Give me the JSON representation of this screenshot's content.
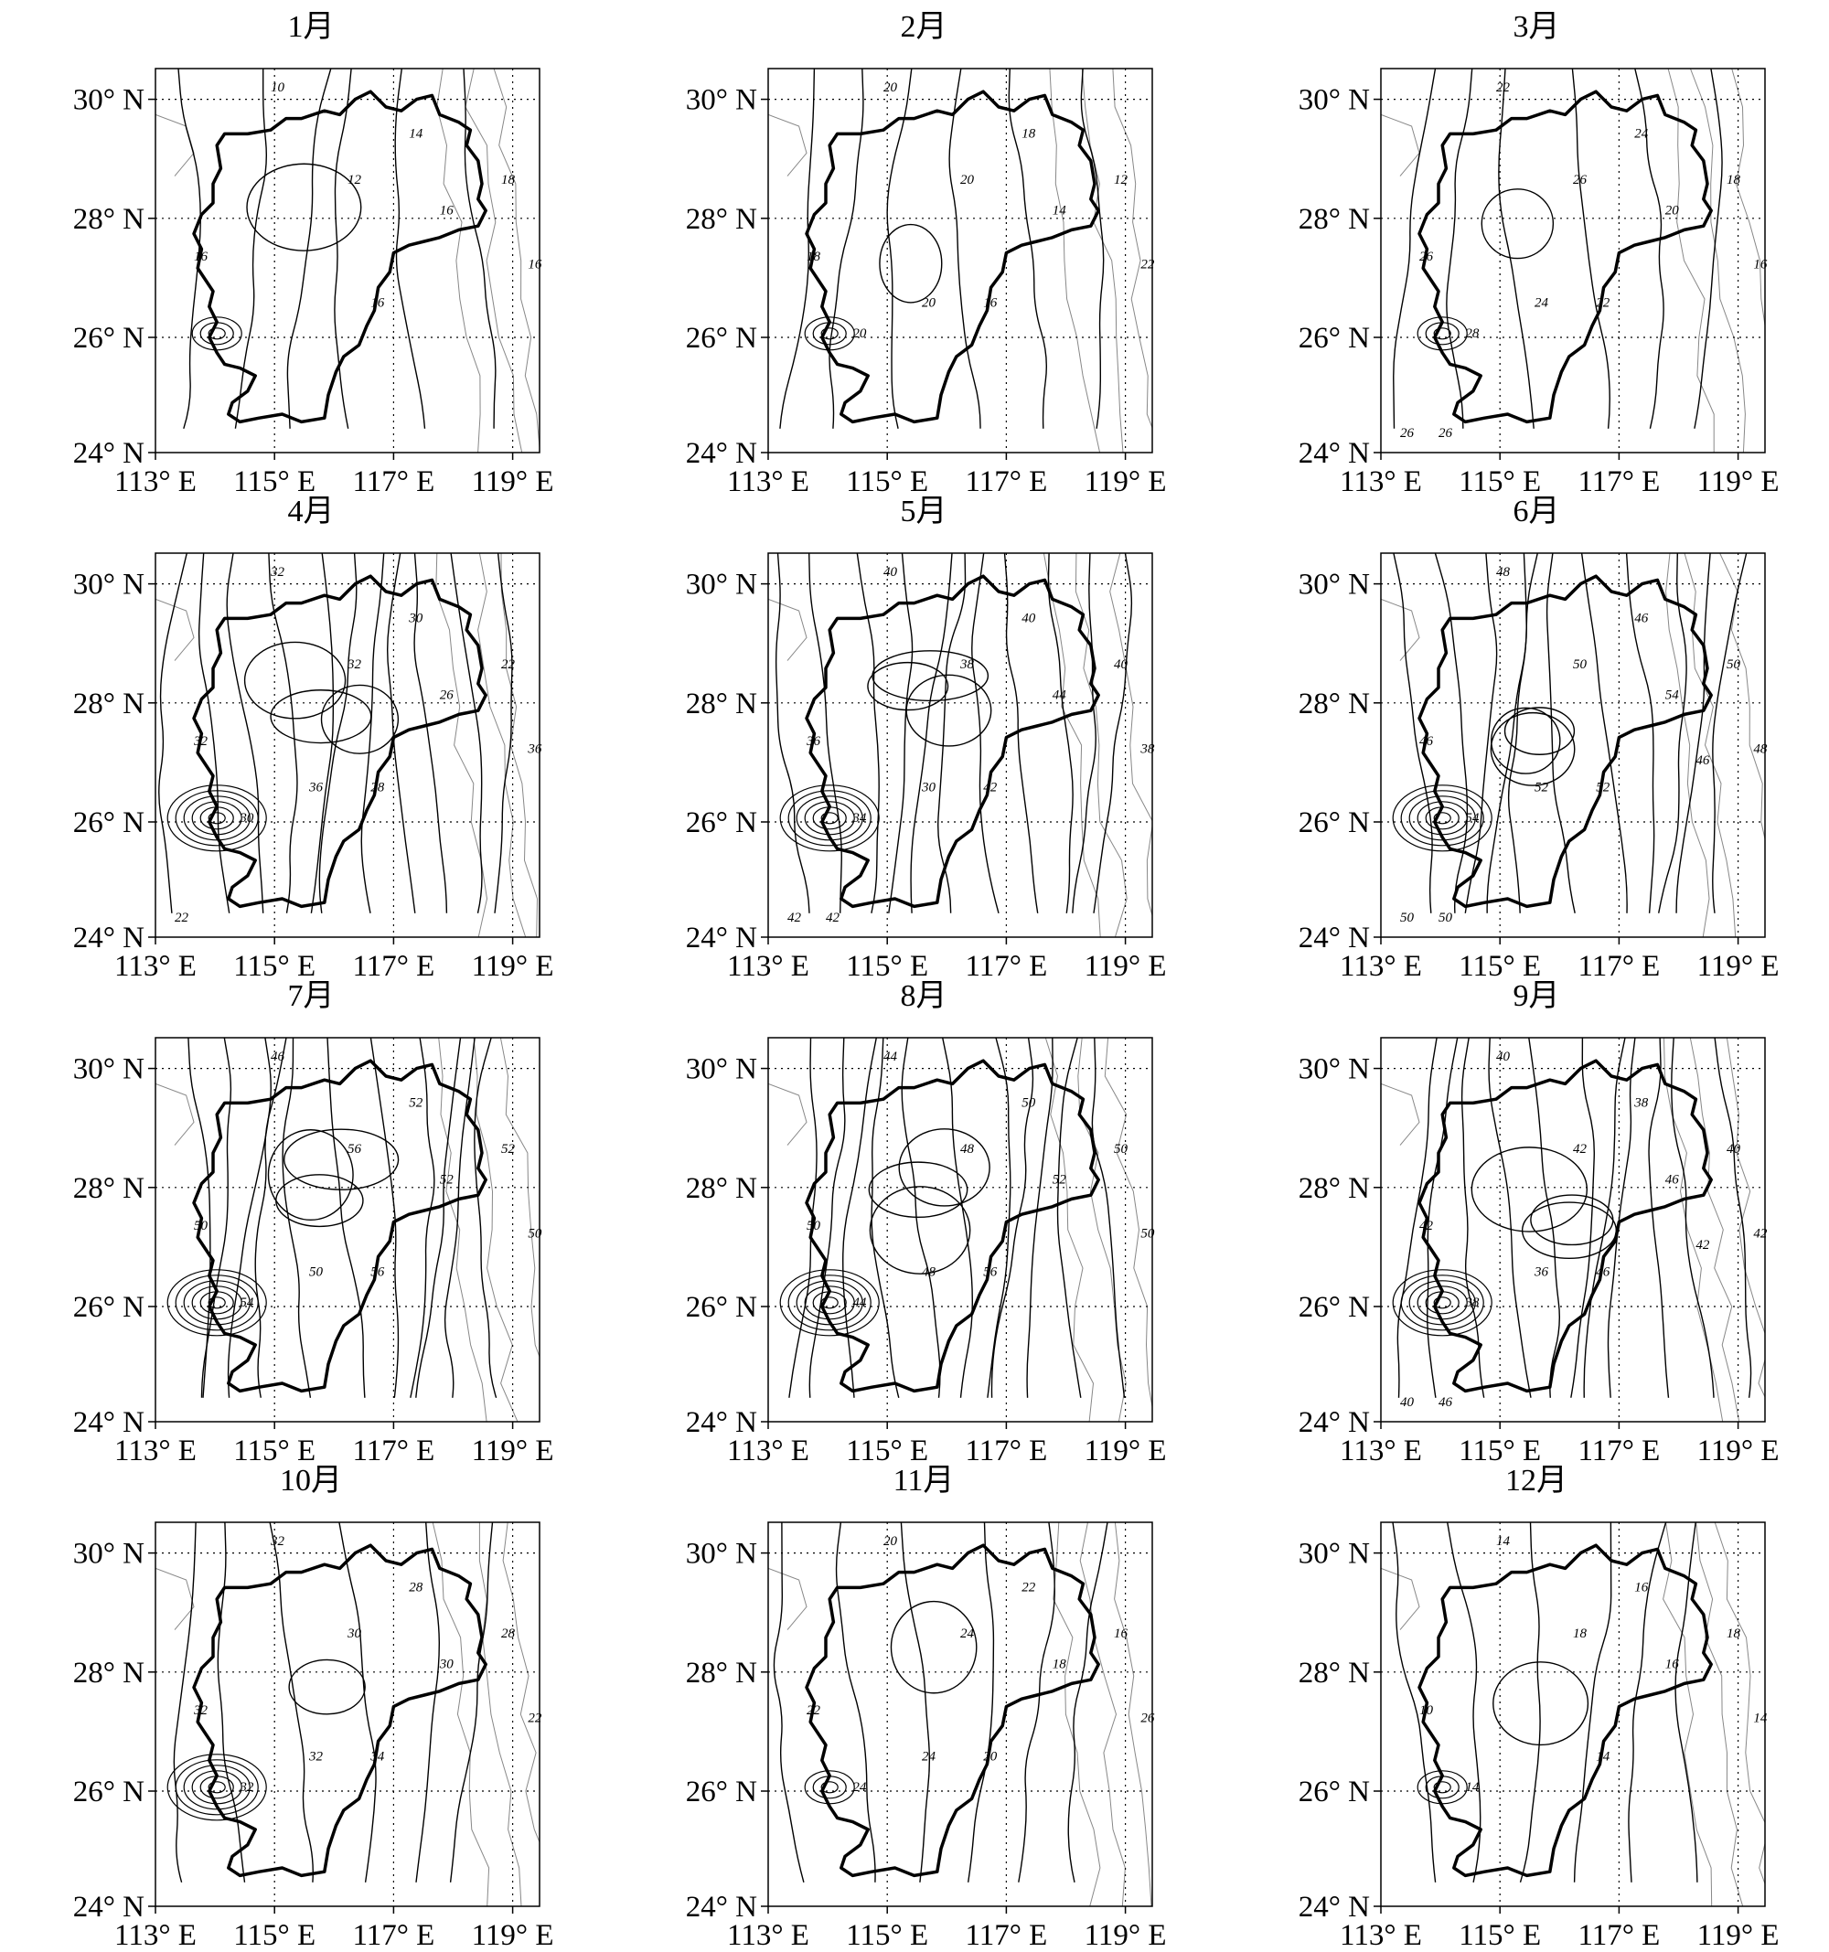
{
  "figure": {
    "panels": [
      {
        "month": "1月",
        "contour_labels": [
          "10",
          "12",
          "14",
          "16",
          "16",
          "18",
          "16",
          "16"
        ]
      },
      {
        "month": "2月",
        "contour_labels": [
          "20",
          "20",
          "18",
          "16",
          "14",
          "12",
          "22",
          "18",
          "20",
          "20"
        ]
      },
      {
        "month": "3月",
        "contour_labels": [
          "22",
          "26",
          "24",
          "22",
          "20",
          "18",
          "16",
          "26",
          "28",
          "24",
          "26",
          "26"
        ]
      },
      {
        "month": "4月",
        "contour_labels": [
          "32",
          "32",
          "30",
          "28",
          "26",
          "22",
          "36",
          "32",
          "30",
          "36",
          "22"
        ]
      },
      {
        "month": "5月",
        "contour_labels": [
          "40",
          "38",
          "40",
          "42",
          "44",
          "40",
          "38",
          "36",
          "34",
          "30",
          "42",
          "42"
        ]
      },
      {
        "month": "6月",
        "contour_labels": [
          "48",
          "50",
          "46",
          "52",
          "54",
          "50",
          "48",
          "46",
          "54",
          "52",
          "50",
          "50",
          "46"
        ]
      },
      {
        "month": "7月",
        "contour_labels": [
          "46",
          "56",
          "52",
          "56",
          "52",
          "52",
          "50",
          "50",
          "54",
          "50"
        ]
      },
      {
        "month": "8月",
        "contour_labels": [
          "44",
          "48",
          "50",
          "56",
          "52",
          "50",
          "50",
          "50",
          "44",
          "48"
        ]
      },
      {
        "month": "9月",
        "contour_labels": [
          "40",
          "42",
          "38",
          "46",
          "46",
          "40",
          "42",
          "42",
          "38",
          "36",
          "40",
          "46",
          "42"
        ]
      },
      {
        "month": "10月",
        "contour_labels": [
          "32",
          "30",
          "28",
          "34",
          "30",
          "28",
          "22",
          "32",
          "32",
          "32"
        ]
      },
      {
        "month": "11月",
        "contour_labels": [
          "20",
          "24",
          "22",
          "20",
          "18",
          "16",
          "26",
          "22",
          "24",
          "24"
        ]
      },
      {
        "month": "12月",
        "contour_labels": [
          "14",
          "18",
          "16",
          "14",
          "16",
          "18",
          "14",
          "10",
          "14"
        ]
      }
    ],
    "lat_labels": [
      "30° N",
      "28° N",
      "26° N",
      "24° N"
    ],
    "lon_labels": [
      "113° E",
      "115° E",
      "117° E",
      "119° E"
    ]
  }
}
